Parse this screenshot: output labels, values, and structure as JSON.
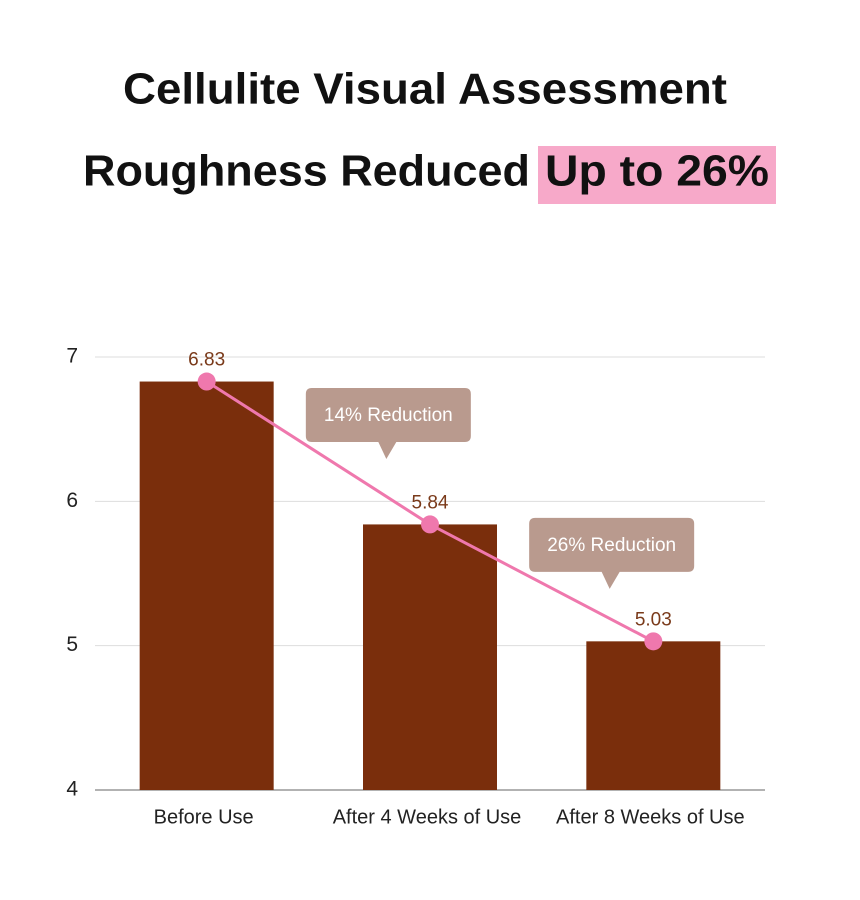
{
  "chart_data": {
    "type": "bar",
    "title": "Cellulite Visual Assessment",
    "subtitle": "Roughness Reduced",
    "subtitle_highlight": "Up to 26%",
    "categories": [
      "Before Use",
      "After 4 Weeks of Use",
      "After 8 Weeks of Use"
    ],
    "values": [
      6.83,
      5.84,
      5.03
    ],
    "color": "#7a2e0c",
    "line_color": "#ef78ad",
    "highlight_color": "#f7a9c9",
    "callout_color": "#b99a8e",
    "annotations": [
      "14% Reduction",
      "26% Reduction"
    ],
    "ylim": [
      4,
      7
    ],
    "yticks": [
      4,
      5,
      6,
      7
    ],
    "grid": true
  }
}
